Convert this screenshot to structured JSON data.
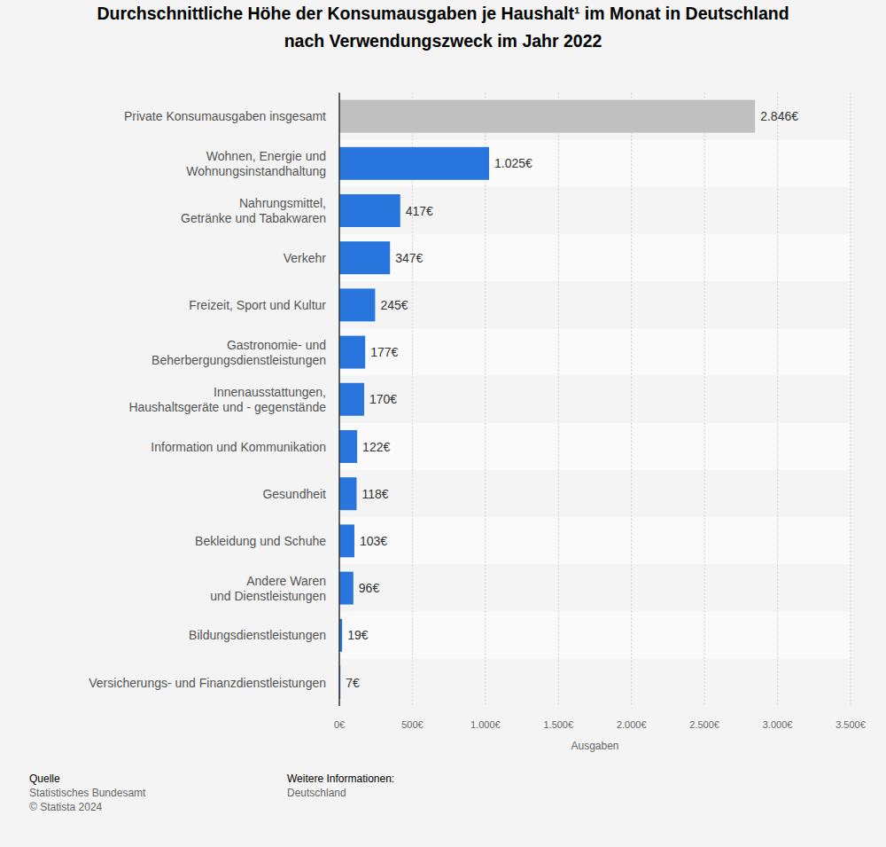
{
  "chart_data": {
    "type": "bar",
    "orientation": "horizontal",
    "title": "Durchschnittliche Höhe der Konsumausgaben je Haushalt¹ im Monat in Deutschland\nnach Verwendungszweck im Jahr 2022",
    "xlabel": "Ausgaben",
    "categories": [
      "Private Konsumausgaben insgesamt",
      "Wohnen, Energie und\nWohnungsinstandhaltung",
      "Nahrungsmittel,\nGetränke und Tabakwaren",
      "Verkehr",
      "Freizeit, Sport und Kultur",
      "Gastronomie- und\nBeherbergungsdienstleistungen",
      "Innenausstattungen,\nHaushaltsgeräte und - gegenstände",
      "Information und Kommunikation",
      "Gesundheit",
      "Bekleidung und Schuhe",
      "Andere Waren\nund Dienstleistungen",
      "Bildungsdienstleistungen",
      "Versicherungs- und Finanzdienstleistungen"
    ],
    "values": [
      2846,
      1025,
      417,
      347,
      245,
      177,
      170,
      122,
      118,
      103,
      96,
      19,
      7
    ],
    "value_labels": [
      "2.846€",
      "1.025€",
      "417€",
      "347€",
      "245€",
      "177€",
      "170€",
      "122€",
      "118€",
      "103€",
      "96€",
      "19€",
      "7€"
    ],
    "colors": [
      "#c0c0c0",
      "#2876dd",
      "#2876dd",
      "#2876dd",
      "#2876dd",
      "#2876dd",
      "#2876dd",
      "#2876dd",
      "#2876dd",
      "#2876dd",
      "#2876dd",
      "#2876dd",
      "#2876dd"
    ],
    "xlim": [
      0,
      3500
    ],
    "xticks": [
      {
        "value": 0,
        "label": "0€"
      },
      {
        "value": 500,
        "label": "500€"
      },
      {
        "value": 1000,
        "label": "1.000€"
      },
      {
        "value": 1500,
        "label": "1.500€"
      },
      {
        "value": 2000,
        "label": "2.000€"
      },
      {
        "value": 2500,
        "label": "2.500€"
      },
      {
        "value": 3000,
        "label": "3.000€"
      },
      {
        "value": 3500,
        "label": "3.500€"
      }
    ],
    "grid": true,
    "data_labels": true
  },
  "footer": {
    "source_heading": "Quelle",
    "source": "Statistisches Bundesamt",
    "copyright": "© Statista 2024",
    "info_heading": "Weitere Informationen:",
    "info": "Deutschland"
  }
}
